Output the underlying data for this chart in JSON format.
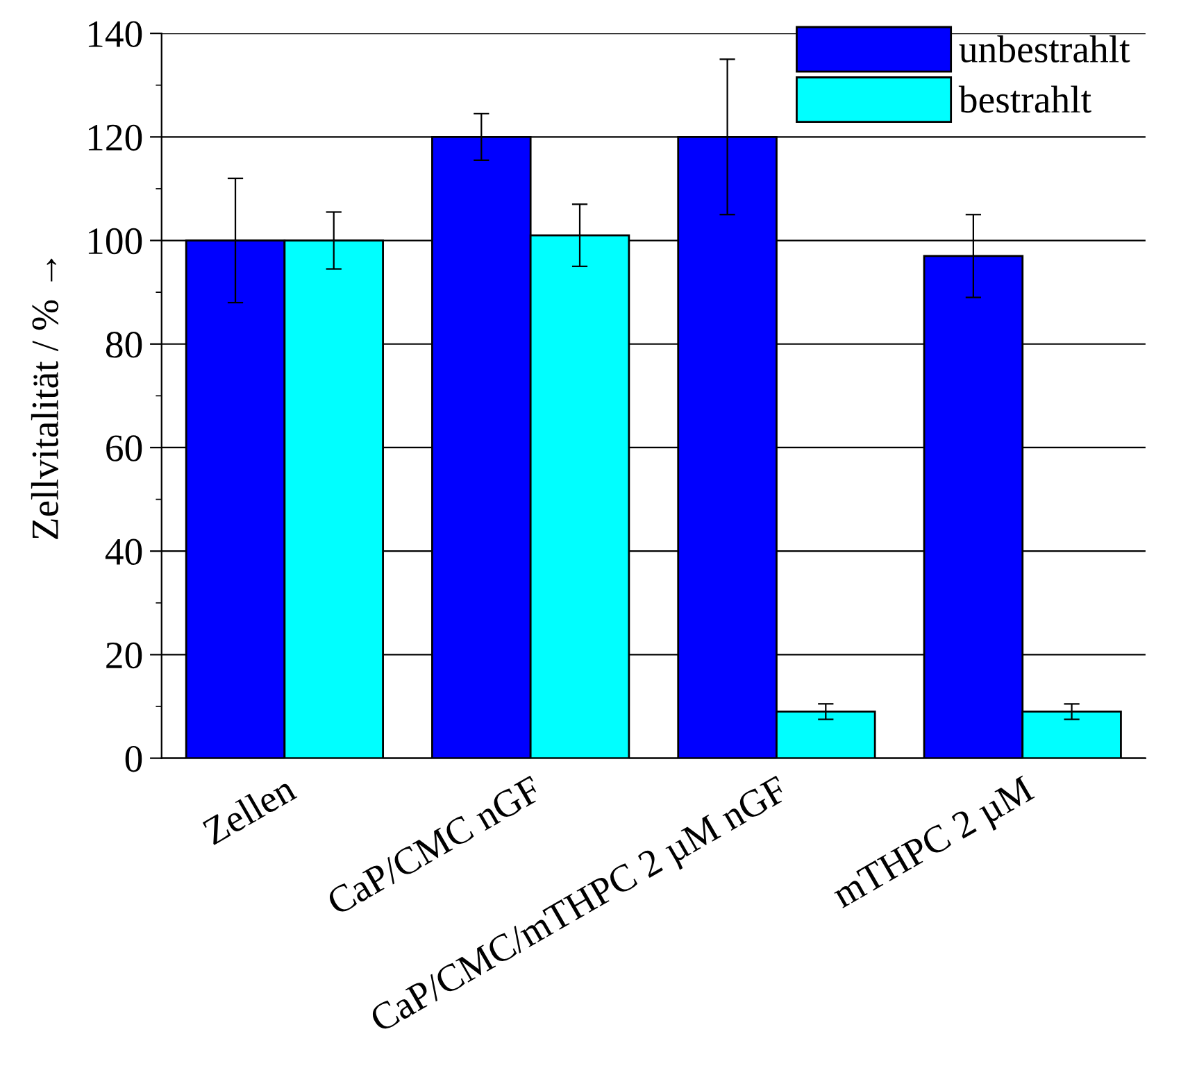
{
  "chart_data": {
    "type": "bar",
    "ylabel": "Zellvitalität / % →",
    "categories": [
      "Zellen",
      "CaP/CMC nGF",
      "CaP/CMC/mTHPC 2 µM nGF",
      "mTHPC 2 µM"
    ],
    "series": [
      {
        "name": "unbestrahlt",
        "color": "#0000ff",
        "values": [
          100,
          120,
          120,
          97
        ],
        "errors": [
          12,
          4.5,
          15,
          8
        ]
      },
      {
        "name": "bestrahlt",
        "color": "#00ffff",
        "values": [
          100,
          101,
          9,
          9
        ],
        "errors": [
          5.5,
          6,
          1.5,
          1.5
        ]
      }
    ],
    "ylim": [
      0,
      140
    ],
    "yticks": [
      0,
      20,
      40,
      60,
      80,
      100,
      120,
      140
    ],
    "grid": "y",
    "legend": "top right"
  }
}
